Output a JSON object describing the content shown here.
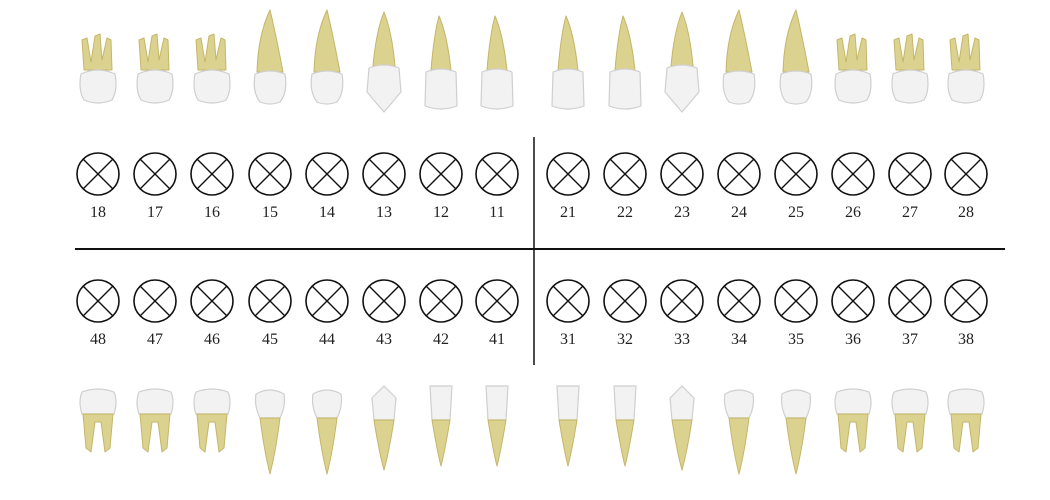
{
  "colors": {
    "root": "#dcd28f",
    "root_shade": "#c4b66a",
    "crown": "#f2f2f2",
    "crown_shade": "#cfcfcf",
    "outline": "#333333",
    "line": "#111111"
  },
  "upper_row": {
    "labels": [
      "18",
      "17",
      "16",
      "15",
      "14",
      "13",
      "12",
      "11",
      "21",
      "22",
      "23",
      "24",
      "25",
      "26",
      "27",
      "28"
    ],
    "teeth": [
      {
        "type": "molar-upper",
        "icon": "upper-molar-icon"
      },
      {
        "type": "molar-upper",
        "icon": "upper-molar-icon"
      },
      {
        "type": "molar-upper",
        "icon": "upper-molar-icon"
      },
      {
        "type": "premolar-upper",
        "icon": "upper-premolar-icon"
      },
      {
        "type": "premolar-upper",
        "icon": "upper-premolar-icon"
      },
      {
        "type": "canine-upper",
        "icon": "upper-canine-icon"
      },
      {
        "type": "incisor-upper",
        "icon": "upper-incisor-icon"
      },
      {
        "type": "incisor-upper",
        "icon": "upper-incisor-icon"
      },
      {
        "type": "incisor-upper",
        "icon": "upper-incisor-icon"
      },
      {
        "type": "incisor-upper",
        "icon": "upper-incisor-icon"
      },
      {
        "type": "canine-upper",
        "icon": "upper-canine-icon"
      },
      {
        "type": "premolar-upper",
        "icon": "upper-premolar-icon"
      },
      {
        "type": "premolar-upper",
        "icon": "upper-premolar-icon"
      },
      {
        "type": "molar-upper",
        "icon": "upper-molar-icon"
      },
      {
        "type": "molar-upper",
        "icon": "upper-molar-icon"
      },
      {
        "type": "molar-upper",
        "icon": "upper-molar-icon"
      }
    ]
  },
  "lower_row": {
    "labels": [
      "48",
      "47",
      "46",
      "45",
      "44",
      "43",
      "42",
      "41",
      "31",
      "32",
      "33",
      "34",
      "35",
      "36",
      "37",
      "38"
    ],
    "teeth": [
      {
        "type": "molar-lower",
        "icon": "lower-molar-icon"
      },
      {
        "type": "molar-lower",
        "icon": "lower-molar-icon"
      },
      {
        "type": "molar-lower",
        "icon": "lower-molar-icon"
      },
      {
        "type": "premolar-lower",
        "icon": "lower-premolar-icon"
      },
      {
        "type": "premolar-lower",
        "icon": "lower-premolar-icon"
      },
      {
        "type": "canine-lower",
        "icon": "lower-canine-icon"
      },
      {
        "type": "incisor-lower",
        "icon": "lower-incisor-icon"
      },
      {
        "type": "incisor-lower",
        "icon": "lower-incisor-icon"
      },
      {
        "type": "incisor-lower",
        "icon": "lower-incisor-icon"
      },
      {
        "type": "incisor-lower",
        "icon": "lower-incisor-icon"
      },
      {
        "type": "canine-lower",
        "icon": "lower-canine-icon"
      },
      {
        "type": "premolar-lower",
        "icon": "lower-premolar-icon"
      },
      {
        "type": "premolar-lower",
        "icon": "lower-premolar-icon"
      },
      {
        "type": "molar-lower",
        "icon": "lower-molar-icon"
      },
      {
        "type": "molar-lower",
        "icon": "lower-molar-icon"
      },
      {
        "type": "molar-lower",
        "icon": "lower-molar-icon"
      }
    ]
  },
  "marker_icon": "circle-x-icon"
}
